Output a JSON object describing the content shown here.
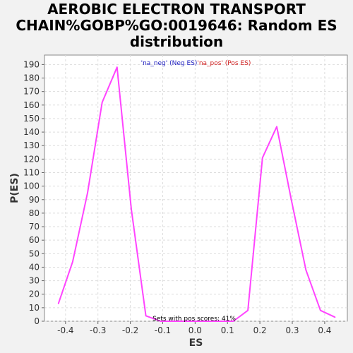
{
  "title": "AEROBIC ELECTRON TRANSPORT CHAIN%GOBP%GO:0019646: Random ES distribution",
  "chart_data": {
    "type": "line",
    "xlabel": "ES",
    "ylabel": "P(ES)",
    "xlim": [
      -0.465,
      0.47
    ],
    "ylim": [
      0,
      197
    ],
    "xticks": [
      -0.4,
      -0.3,
      -0.2,
      -0.1,
      0.0,
      0.1,
      0.2,
      0.3,
      0.4
    ],
    "xtick_labels": [
      "-0.4",
      "-0.3",
      "-0.2",
      "-0.1",
      "0.0",
      "0.1",
      "0.2",
      "0.3",
      "0.4"
    ],
    "yticks": [
      0,
      10,
      20,
      30,
      40,
      50,
      60,
      70,
      80,
      90,
      100,
      110,
      120,
      130,
      140,
      150,
      160,
      170,
      180,
      190
    ],
    "grid": true,
    "legend_position": "top-center",
    "legend": [
      {
        "label": "'na_neg' (Neg ES)",
        "color": "#2020c0"
      },
      {
        "label": "'na_pos' (Pos ES)",
        "color": "#d02020"
      }
    ],
    "annotation": "Sets with pos scores: 41%",
    "line_color": "#ff44ff",
    "series": [
      {
        "x": [
          -0.422,
          -0.378,
          -0.332,
          -0.287,
          -0.241,
          -0.197,
          -0.152,
          -0.107,
          -0.062,
          -0.017,
          0.028,
          0.073,
          0.118,
          0.163,
          0.208,
          0.252,
          0.297,
          0.342,
          0.387,
          0.432
        ],
        "y": [
          13,
          44,
          95,
          162,
          188,
          83,
          4,
          0,
          0,
          0,
          0,
          0,
          0,
          8,
          121,
          144,
          90,
          38,
          8,
          3
        ]
      }
    ]
  }
}
